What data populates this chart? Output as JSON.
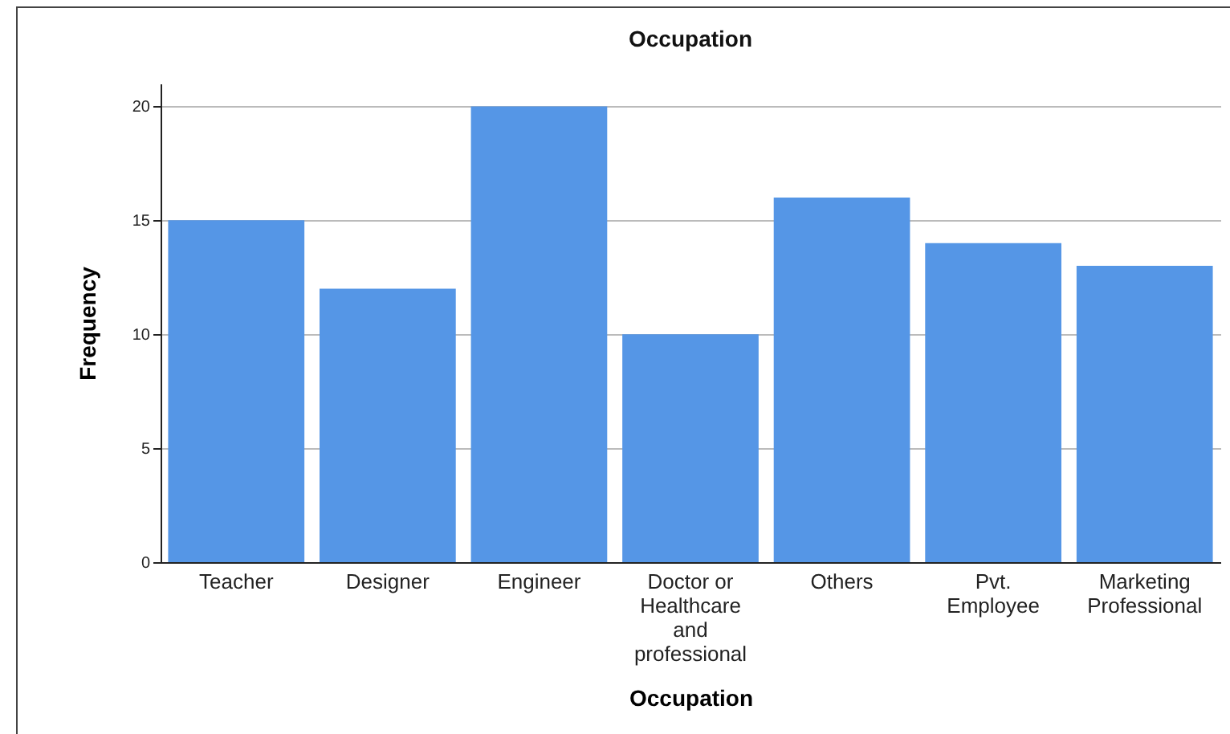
{
  "chart_data": {
    "type": "bar",
    "title": "Occupation",
    "xlabel": "Occupation",
    "ylabel": "Frequency",
    "categories": [
      "Teacher",
      "Designer",
      "Engineer",
      "Doctor or Healthcare and professional",
      "Others",
      "Pvt. Employee",
      "Marketing Professional"
    ],
    "values": [
      15,
      12,
      20,
      10,
      16,
      14,
      13
    ],
    "color": "#5596e6",
    "ylim": [
      0,
      21
    ],
    "yticks": [
      0,
      5,
      10,
      15,
      20
    ],
    "grid": "y"
  }
}
